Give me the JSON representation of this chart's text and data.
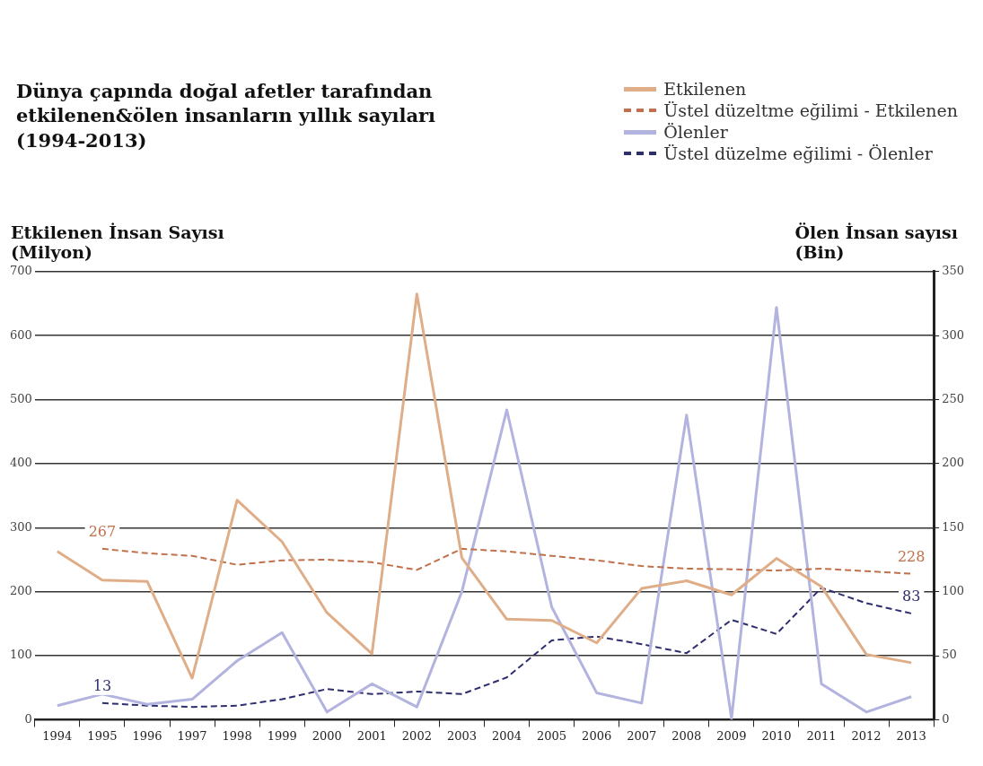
{
  "chart_data": {
    "type": "line",
    "title": "Dünya çapında doğal afetler tarafından\netkilenen&ölen insanların yıllık sayıları\n(1994-2013)",
    "ylabel": "Etkilenen İnsan Sayısı\n(Milyon)",
    "y2label": "Ölen İnsan sayısı\n(Bin)",
    "categories": [
      "1994",
      "1995",
      "1996",
      "1997",
      "1998",
      "1999",
      "2000",
      "2001",
      "2002",
      "2003",
      "2004",
      "2005",
      "2006",
      "2007",
      "2008",
      "2009",
      "2010",
      "2011",
      "2012",
      "2013"
    ],
    "series": [
      {
        "name": "Etkilenen",
        "color": "#dfae88",
        "values": [
          263,
          218,
          216,
          65,
          343,
          278,
          167,
          103,
          665,
          253,
          157,
          155,
          120,
          205,
          217,
          195,
          252,
          208,
          102,
          89
        ]
      },
      {
        "name": "Üstel düzeltme eğilimi - Etkilenen",
        "color": "#c0704a",
        "line_style": "dashed",
        "values": [
          null,
          267,
          260,
          256,
          242,
          249,
          250,
          246,
          234,
          267,
          263,
          256,
          249,
          240,
          236,
          235,
          233,
          236,
          232,
          228
        ],
        "value_labels": [
          null,
          "267",
          null,
          null,
          null,
          null,
          null,
          null,
          null,
          null,
          null,
          null,
          null,
          null,
          null,
          null,
          null,
          null,
          null,
          "228"
        ]
      },
      {
        "name": "Ölenler",
        "color": "#b3b3e0",
        "axis": "y2",
        "values": [
          11,
          20,
          12,
          16,
          46,
          68,
          6,
          28,
          10,
          100,
          242,
          88,
          21,
          13,
          238,
          1,
          322,
          28,
          6,
          18
        ]
      },
      {
        "name": "Üstel düzelme eğilimi - Ölenler",
        "color": "#2e2e6e",
        "axis": "y2",
        "line_style": "dashed",
        "values": [
          null,
          13,
          11,
          10,
          11,
          16,
          24,
          20,
          22,
          20,
          33,
          62,
          65,
          59,
          52,
          78,
          67,
          103,
          91,
          83
        ],
        "value_labels": [
          null,
          "13",
          null,
          null,
          null,
          null,
          null,
          null,
          null,
          null,
          null,
          null,
          null,
          null,
          null,
          null,
          null,
          null,
          null,
          "83"
        ]
      }
    ],
    "ylim": [
      0,
      700
    ],
    "yticks": [
      0,
      100,
      200,
      300,
      400,
      500,
      600,
      700
    ],
    "y2lim": [
      0,
      350
    ],
    "y2ticks": [
      0,
      50,
      100,
      150,
      200,
      250,
      300,
      350
    ],
    "grid": "y",
    "legend": "top right",
    "marker": "none"
  }
}
